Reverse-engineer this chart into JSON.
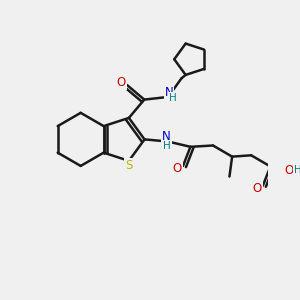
{
  "bg_color": "#f0f0f0",
  "bond_color": "#1a1a1a",
  "S_color": "#b8b800",
  "N_color": "#0000cc",
  "O_color": "#cc0000",
  "H_color": "#008080",
  "line_width": 1.8,
  "figsize": [
    3.0,
    3.0
  ],
  "dpi": 100,
  "xlim": [
    0,
    10
  ],
  "ylim": [
    0,
    10
  ]
}
